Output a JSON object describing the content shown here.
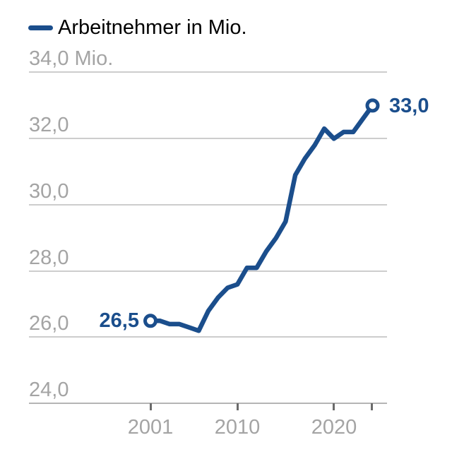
{
  "legend": {
    "label": "Arbeitnehmer in Mio."
  },
  "chart_data": {
    "type": "line",
    "title": "Arbeitnehmer in Mio.",
    "legend_entries": [
      "Arbeitnehmer in Mio."
    ],
    "legend_position": "top-left",
    "unit": "Mio.",
    "grid": true,
    "x": [
      2001,
      2002,
      2003,
      2004,
      2005,
      2006,
      2007,
      2008,
      2009,
      2010,
      2011,
      2012,
      2013,
      2014,
      2015,
      2016,
      2017,
      2018,
      2019,
      2020,
      2021,
      2022,
      2023,
      2024
    ],
    "values": [
      26.5,
      26.5,
      26.4,
      26.4,
      26.3,
      26.2,
      26.8,
      27.2,
      27.5,
      27.6,
      28.1,
      28.1,
      28.6,
      29.0,
      29.5,
      30.9,
      31.4,
      31.8,
      32.3,
      32.0,
      32.2,
      32.2,
      32.6,
      33.0
    ],
    "ylim": [
      24.0,
      34.0
    ],
    "yticks": [
      {
        "label": "34,0 Mio.",
        "value": 34.0
      },
      {
        "label": "32,0",
        "value": 32.0
      },
      {
        "label": "30,0",
        "value": 30.0
      },
      {
        "label": "28,0",
        "value": 28.0
      },
      {
        "label": "26,0",
        "value": 26.0
      },
      {
        "label": "24,0",
        "value": 24.0
      }
    ],
    "xticks": [
      {
        "label": "2001",
        "value": 2001
      },
      {
        "label": "2010",
        "value": 2010
      },
      {
        "label": "2020",
        "value": 2020
      },
      {
        "label": "",
        "value": 2024
      }
    ],
    "annotations": {
      "start": {
        "label": "26,5",
        "year": 2001,
        "value": 26.5
      },
      "end": {
        "label": "33,0",
        "year": 2024,
        "value": 33.0
      }
    },
    "colors": {
      "line": "#1b4e8c",
      "marker_fill": "#ffffff",
      "value_label": "#1b4e8c",
      "gridline": "#cdcdcd",
      "axis": "#b5b5b5",
      "tick_label": "#a4a4a4",
      "legend_text": "#000000"
    }
  }
}
